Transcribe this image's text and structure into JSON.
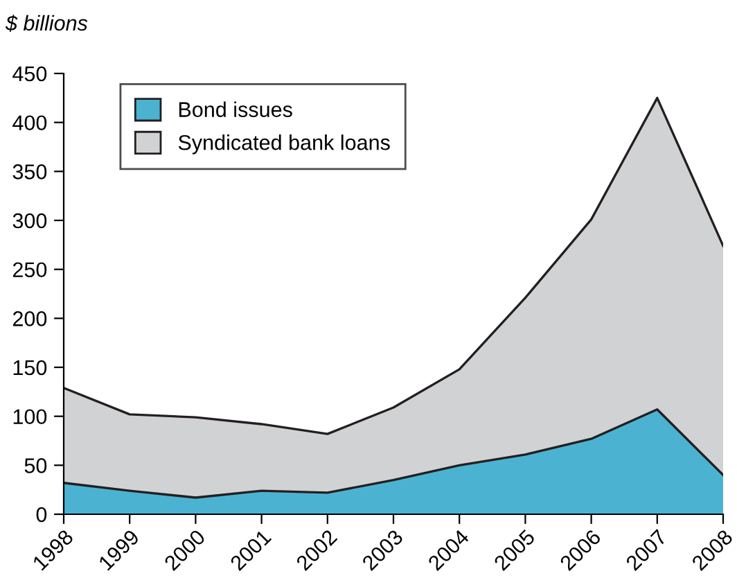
{
  "chart_data": {
    "type": "area",
    "stacked": true,
    "ylabel": "$ billions",
    "categories": [
      "1998",
      "1999",
      "2000",
      "2001",
      "2002",
      "2003",
      "2004",
      "2005",
      "2006",
      "2007",
      "2008"
    ],
    "series": [
      {
        "name": "Bond issues",
        "color": "#4bb3d1",
        "values": [
          32,
          24,
          17,
          24,
          22,
          35,
          50,
          61,
          77,
          107,
          40
        ]
      },
      {
        "name": "Syndicated bank loans",
        "color": "#d1d2d4",
        "values": [
          97,
          78,
          82,
          68,
          60,
          74,
          98,
          160,
          224,
          318,
          234
        ]
      }
    ],
    "ylim": [
      0,
      450
    ],
    "yticks": [
      0,
      50,
      100,
      150,
      200,
      250,
      300,
      350,
      400,
      450
    ],
    "grid": false,
    "legend": "top left"
  }
}
